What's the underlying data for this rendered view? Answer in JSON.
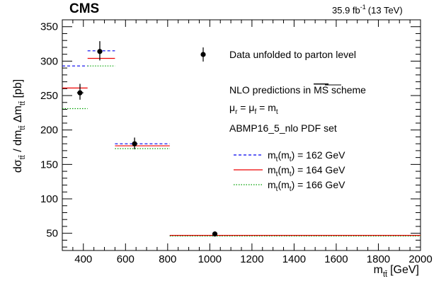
{
  "header": {
    "experiment": "CMS",
    "lumi": "35.9 fb",
    "lumi_exp": "-1",
    "energy": "(13 TeV)"
  },
  "annotations": {
    "data_label": "Data unfolded to parton level",
    "nlo_pre": "NLO predictions in ",
    "nlo_scheme": "MS",
    "nlo_post": " scheme",
    "scales": "μr = μf = mt",
    "pdf": "ABMP16_5_nlo PDF set"
  },
  "chart_data": {
    "type": "scatter",
    "xlabel": "m_tt̄ [GeV]",
    "ylabel": "dσ_tt̄ / dm_tt̄ Δm_tt̄ [pb]",
    "xlim": [
      300,
      2000
    ],
    "ylim": [
      25,
      360
    ],
    "x_ticks": [
      400,
      600,
      800,
      1000,
      1200,
      1400,
      1600,
      1800,
      2000
    ],
    "y_ticks": [
      50,
      100,
      150,
      200,
      250,
      300,
      350
    ],
    "bins": [
      [
        300,
        420
      ],
      [
        420,
        550
      ],
      [
        550,
        810
      ],
      [
        810,
        2000
      ]
    ],
    "data": {
      "name": "Data unfolded to parton level",
      "color": "#000000",
      "points": [
        {
          "x": 384,
          "y": 254,
          "err_lo": 10,
          "err_hi": 13,
          "xerr_lo": 14,
          "xerr_hi": 16
        },
        {
          "x": 478,
          "y": 314,
          "err_lo": 13,
          "err_hi": 15,
          "xerr_lo": 0,
          "xerr_hi": 0
        },
        {
          "x": 643,
          "y": 180,
          "err_lo": 8,
          "err_hi": 9,
          "xerr_lo": 0,
          "xerr_hi": 0
        },
        {
          "x": 1024,
          "y": 49,
          "err_lo": 2,
          "err_hi": 2,
          "xerr_lo": 0,
          "xerr_hi": 0
        }
      ]
    },
    "series": [
      {
        "name": "m_t(m_t) = 162 GeV",
        "color": "#0000ee",
        "dash": "dashed",
        "values": [
          293,
          315,
          180,
          47
        ]
      },
      {
        "name": "m_t(m_t) = 164 GeV",
        "color": "#ee0000",
        "dash": "solid",
        "values": [
          261,
          304,
          177,
          47
        ]
      },
      {
        "name": "m_t(m_t) = 166 GeV",
        "color": "#00a000",
        "dash": "dotted",
        "values": [
          231,
          293,
          173,
          46
        ]
      }
    ],
    "legend_position": "right"
  }
}
